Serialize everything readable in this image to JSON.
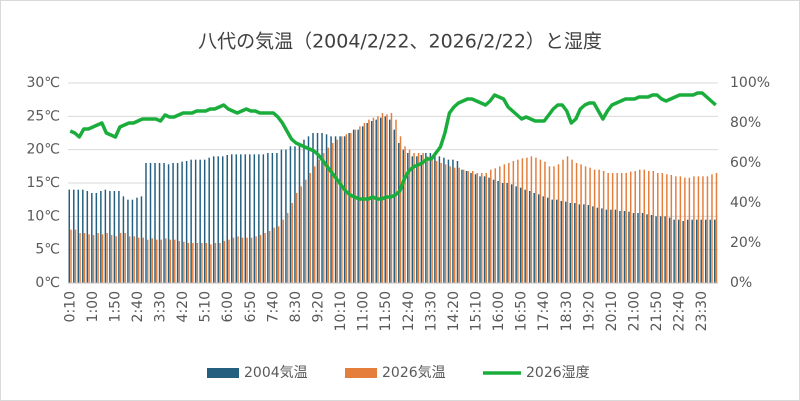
{
  "chart_data": {
    "type": "bar-line",
    "title": "八代の気温（2004/2/22、2026/2/22）と湿度",
    "categories": [
      "0:10",
      null,
      null,
      null,
      null,
      "1:00",
      null,
      null,
      null,
      null,
      "1:50",
      null,
      null,
      null,
      null,
      "2:40",
      null,
      null,
      null,
      null,
      "3:30",
      null,
      null,
      null,
      null,
      "4:20",
      null,
      null,
      null,
      null,
      "5:10",
      null,
      null,
      null,
      null,
      "6:00",
      null,
      null,
      null,
      null,
      "6:50",
      null,
      null,
      null,
      null,
      "7:40",
      null,
      null,
      null,
      null,
      "8:30",
      null,
      null,
      null,
      null,
      "9:20",
      null,
      null,
      null,
      null,
      "10:10",
      null,
      null,
      null,
      null,
      "11:00",
      null,
      null,
      null,
      null,
      "11:50",
      null,
      null,
      null,
      null,
      "12:40",
      null,
      null,
      null,
      null,
      "13:30",
      null,
      null,
      null,
      null,
      "14:20",
      null,
      null,
      null,
      null,
      "15:10",
      null,
      null,
      null,
      null,
      "16:00",
      null,
      null,
      null,
      null,
      "16:50",
      null,
      null,
      null,
      null,
      "17:40",
      null,
      null,
      null,
      null,
      "18:30",
      null,
      null,
      null,
      null,
      "19:20",
      null,
      null,
      null,
      null,
      "20:10",
      null,
      null,
      null,
      null,
      "21:00",
      null,
      null,
      null,
      null,
      "21:50",
      null,
      null,
      null,
      null,
      "22:40",
      null,
      null,
      null,
      null,
      "23:30",
      null,
      null,
      null
    ],
    "series": [
      {
        "name": "2004気温",
        "type": "bar",
        "color": "#245f80",
        "values": [
          14,
          14,
          14,
          14,
          13.8,
          13.5,
          13.5,
          13.8,
          14,
          13.8,
          13.8,
          13.8,
          13,
          12.5,
          12.5,
          12.8,
          13,
          18,
          18,
          18,
          18,
          18,
          17.8,
          18,
          18,
          18.2,
          18.3,
          18.5,
          18.5,
          18.5,
          18.5,
          18.8,
          19,
          19,
          19,
          19.2,
          19.3,
          19.3,
          19.3,
          19.3,
          19.3,
          19.3,
          19.3,
          19.3,
          19.5,
          19.5,
          19.5,
          20,
          20,
          20.5,
          20.5,
          21,
          21.5,
          22,
          22.5,
          22.5,
          22.5,
          22.3,
          22,
          22,
          22,
          22,
          22.5,
          23,
          23,
          23.5,
          24,
          24.3,
          24.5,
          24.8,
          25,
          24.5,
          23,
          21,
          20,
          19.5,
          19,
          19,
          19.2,
          19.5,
          19.5,
          19.3,
          19,
          18.8,
          18.5,
          18.5,
          18.3,
          17,
          16.8,
          16.5,
          16.3,
          16,
          16,
          15.8,
          15.5,
          15.3,
          15,
          15,
          14.8,
          14.5,
          14.3,
          14,
          13.8,
          13.5,
          13.3,
          13,
          12.8,
          12.5,
          12.5,
          12.3,
          12.2,
          12,
          12,
          11.8,
          11.8,
          11.7,
          11.5,
          11.3,
          11.2,
          11,
          11,
          11,
          10.8,
          10.8,
          10.7,
          10.5,
          10.5,
          10.5,
          10.3,
          10.2,
          10,
          10,
          10,
          9.8,
          9.5,
          9.5,
          9.3,
          9.5,
          9.5,
          9.5,
          9.5,
          9.5,
          9.5,
          9.5
        ]
      },
      {
        "name": "2026気温",
        "type": "bar",
        "color": "#e57d3b",
        "values": [
          8,
          8,
          7.5,
          7.5,
          7.3,
          7.2,
          7.5,
          7.3,
          7.5,
          7.2,
          7,
          7.5,
          7.5,
          7,
          7,
          6.8,
          6.8,
          6.5,
          6.7,
          6.5,
          6.5,
          6.7,
          6.5,
          6.5,
          6.3,
          6.2,
          6,
          6,
          6,
          6,
          6,
          5.8,
          6,
          6,
          6.3,
          6.5,
          6.8,
          7,
          6.8,
          6.8,
          6.8,
          7,
          7.2,
          7.5,
          7.8,
          8.3,
          8.5,
          9.5,
          10.5,
          12,
          13.5,
          14.5,
          15.5,
          16.5,
          17.5,
          18.5,
          19.5,
          20.3,
          21,
          21.5,
          22,
          22.3,
          22.5,
          23,
          23.5,
          24,
          24.5,
          24.8,
          25,
          25.5,
          25.3,
          25.5,
          24.5,
          22,
          20.5,
          20,
          19.5,
          19.5,
          19.5,
          19,
          18.5,
          18.3,
          18,
          17.8,
          17.5,
          17.3,
          17.3,
          17,
          16.8,
          16.8,
          16.5,
          16.5,
          16.5,
          17,
          17.2,
          17.5,
          17.8,
          18,
          18.3,
          18.5,
          18.7,
          18.8,
          19,
          18.8,
          18.5,
          18.2,
          17.5,
          17.5,
          17.8,
          18.5,
          19,
          18.5,
          18,
          17.8,
          17.5,
          17.3,
          17,
          17,
          16.8,
          16.5,
          16.5,
          16.5,
          16.5,
          16.5,
          16.7,
          16.8,
          17,
          17,
          16.8,
          16.8,
          16.5,
          16.5,
          16.3,
          16.2,
          16,
          16,
          15.8,
          15.8,
          16,
          16,
          16,
          16,
          16.3,
          16.5
        ]
      },
      {
        "name": "2026湿度",
        "type": "line",
        "axis": "y2",
        "color": "#1aad3c",
        "values": [
          76,
          75,
          73,
          77,
          77,
          78,
          79,
          80,
          75,
          74,
          73,
          78,
          79,
          80,
          80,
          81,
          82,
          82,
          82,
          82,
          81,
          84,
          83,
          83,
          84,
          85,
          85,
          85,
          86,
          86,
          86,
          87,
          87,
          88,
          89,
          87,
          86,
          85,
          86,
          87,
          86,
          86,
          85,
          85,
          85,
          85,
          83,
          80,
          76,
          72,
          70,
          69,
          68,
          67,
          66,
          64,
          61,
          58,
          55,
          52,
          49,
          46,
          44,
          43,
          42,
          42,
          42,
          43,
          42,
          42,
          43,
          43,
          44,
          46,
          52,
          56,
          58,
          59,
          60,
          62,
          62,
          65,
          68,
          75,
          85,
          88,
          90,
          91,
          92,
          92,
          91,
          90,
          89,
          91,
          94,
          93,
          92,
          88,
          86,
          84,
          82,
          83,
          82,
          81,
          81,
          81,
          84,
          87,
          89,
          89,
          86,
          80,
          82,
          87,
          89,
          90,
          90,
          86,
          82,
          86,
          89,
          90,
          91,
          92,
          92,
          92,
          93,
          93,
          93,
          94,
          94,
          92,
          91,
          92,
          93,
          94,
          94,
          94,
          94,
          95,
          95,
          93,
          91,
          89
        ]
      }
    ],
    "ylim": [
      0,
      30
    ],
    "yticks": [
      {
        "value": 0,
        "label": "0℃"
      },
      {
        "value": 5,
        "label": "5℃"
      },
      {
        "value": 10,
        "label": "10℃"
      },
      {
        "value": 15,
        "label": "15℃"
      },
      {
        "value": 20,
        "label": "20℃"
      },
      {
        "value": 25,
        "label": "25℃"
      },
      {
        "value": 30,
        "label": "30℃"
      }
    ],
    "y2lim": [
      0,
      100
    ],
    "y2ticks": [
      {
        "value": 0,
        "label": "0%"
      },
      {
        "value": 20,
        "label": "20%"
      },
      {
        "value": 40,
        "label": "40%"
      },
      {
        "value": 60,
        "label": "60%"
      },
      {
        "value": 80,
        "label": "80%"
      },
      {
        "value": 100,
        "label": "100%"
      }
    ],
    "grid": true,
    "legend": "bottom"
  }
}
